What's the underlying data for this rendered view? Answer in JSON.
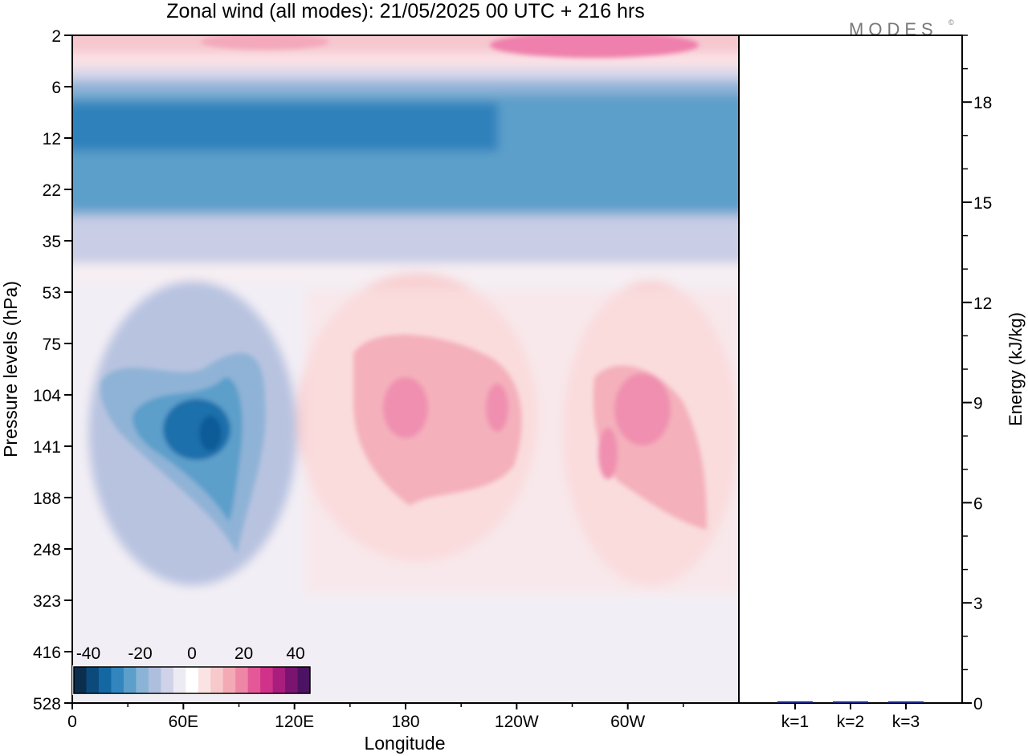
{
  "title": "Zonal wind (all modes):  21/05/2025  00 UTC  + 216 hrs",
  "logo": "MODES",
  "chart_data": [
    {
      "type": "heatmap",
      "xlabel": "Longitude",
      "ylabel": "Pressure levels (hPa)",
      "x_ticks": [
        "0",
        "60E",
        "120E",
        "180",
        "120W",
        "60W"
      ],
      "y_ticks": [
        "2",
        "6",
        "12",
        "22",
        "35",
        "53",
        "75",
        "104",
        "141",
        "188",
        "248",
        "323",
        "416",
        "528"
      ],
      "colorbar": {
        "tick_labels": [
          "-40",
          "-20",
          "0",
          "20",
          "40"
        ],
        "colors": [
          "#0b2d4e",
          "#0c4a7c",
          "#1368a4",
          "#3386bd",
          "#5b9fca",
          "#8ab3d6",
          "#aebfdd",
          "#cfd2e8",
          "#eceaf3",
          "#ffffff",
          "#fbe3e3",
          "#f8c9cb",
          "#f3aab5",
          "#ee86a6",
          "#e45898",
          "#d13289",
          "#a81d7d",
          "#7b1470",
          "#4c1263"
        ]
      },
      "features": [
        {
          "name": "upper easterly jet",
          "levels": "6-35",
          "longitudes": "0-360",
          "min_value": -30
        },
        {
          "name": "upper westerly band",
          "levels": "2-6",
          "longitudes": "0-360",
          "max_value": 20
        },
        {
          "name": "easterly core",
          "levels": "75-248",
          "longitudes": "40E-110E",
          "min_value": -30
        },
        {
          "name": "westerly core",
          "levels": "104-188",
          "longitudes": "160E-150W",
          "max_value": 15
        },
        {
          "name": "westerly core",
          "levels": "104-188",
          "longitudes": "90W-30W",
          "max_value": 15
        }
      ]
    },
    {
      "type": "bar",
      "categories": [
        "k=1",
        "k=2",
        "k=3"
      ],
      "values": [
        0.05,
        0.02,
        0.03
      ],
      "ylabel": "Energy (kJ/kg)",
      "ylim": [
        0,
        20
      ],
      "y_ticks": [
        0,
        3,
        6,
        9,
        12,
        15,
        18
      ],
      "bar_color": "#1a237e"
    }
  ]
}
